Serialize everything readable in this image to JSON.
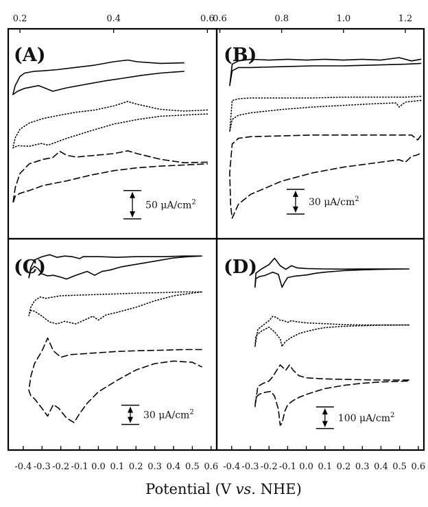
{
  "figure": {
    "xlabel_prefix": "Potential (V ",
    "xlabel_italic": "vs.",
    "xlabel_suffix": " NHE)"
  },
  "chart_data": [
    {
      "type": "line",
      "panel": "A",
      "label": "(A)",
      "x_axis_position": "top",
      "xlim": [
        0.175,
        0.62
      ],
      "xticks": [
        0.2,
        0.4,
        0.6
      ],
      "xtick_labels": [
        "0.2",
        "0.4",
        "0.6"
      ],
      "y_units": "μA/cm²",
      "ylim": [
        -330,
        40
      ],
      "scale_bar": {
        "value": 50,
        "label": "50 μA/cm",
        "sup": "2",
        "x": 0.44,
        "y_center": -270
      },
      "curve_styles": [
        "solid",
        "dotted",
        "dashed"
      ],
      "series": [
        {
          "style": "solid",
          "x": [
            0.55,
            0.5,
            0.45,
            0.43,
            0.4,
            0.36,
            0.32,
            0.28,
            0.25,
            0.23,
            0.21,
            0.2,
            0.19,
            0.185,
            0.195,
            0.21,
            0.24,
            0.27,
            0.3,
            0.34,
            0.38,
            0.42,
            0.46,
            0.5,
            0.55
          ],
          "y": [
            -20,
            -21,
            -18,
            -15,
            -18,
            -24,
            -28,
            -32,
            -34,
            -35,
            -38,
            -44,
            -60,
            -76,
            -70,
            -65,
            -60,
            -70,
            -64,
            -58,
            -52,
            -47,
            -42,
            -38,
            -35
          ]
        },
        {
          "style": "dotted",
          "x": [
            0.6,
            0.55,
            0.5,
            0.45,
            0.43,
            0.4,
            0.36,
            0.32,
            0.28,
            0.25,
            0.22,
            0.2,
            0.19,
            0.185,
            0.195,
            0.22,
            0.245,
            0.26,
            0.3,
            0.35,
            0.4,
            0.45,
            0.5,
            0.55,
            0.6
          ],
          "y": [
            -103,
            -105,
            -102,
            -93,
            -88,
            -96,
            -103,
            -107,
            -113,
            -118,
            -126,
            -137,
            -152,
            -170,
            -166,
            -167,
            -162,
            -165,
            -153,
            -140,
            -128,
            -120,
            -114,
            -112,
            -110
          ]
        },
        {
          "style": "dashed",
          "x": [
            0.6,
            0.55,
            0.5,
            0.45,
            0.43,
            0.4,
            0.36,
            0.32,
            0.3,
            0.285,
            0.27,
            0.25,
            0.22,
            0.2,
            0.19,
            0.185,
            0.19,
            0.2,
            0.22,
            0.25,
            0.3,
            0.35,
            0.4,
            0.45,
            0.5,
            0.55,
            0.6
          ],
          "y": [
            -195,
            -196,
            -190,
            -180,
            -175,
            -180,
            -183,
            -186,
            -183,
            -176,
            -187,
            -190,
            -198,
            -215,
            -240,
            -268,
            -255,
            -250,
            -245,
            -236,
            -228,
            -218,
            -210,
            -205,
            -202,
            -200,
            -198
          ]
        }
      ]
    },
    {
      "type": "line",
      "panel": "B",
      "label": "(B)",
      "x_axis_position": "top",
      "xlim": [
        0.59,
        1.26
      ],
      "xticks": [
        0.6,
        0.8,
        1.0,
        1.2
      ],
      "xtick_labels": [
        "0.6",
        "0.8",
        "1.0",
        "1.2"
      ],
      "y_units": "μA/cm²",
      "ylim": [
        -230,
        25
      ],
      "scale_bar": {
        "value": 30,
        "label": "30 μA/cm",
        "sup": "2",
        "x": 0.845,
        "y_center": -185
      },
      "curve_styles": [
        "solid",
        "dotted",
        "dashed"
      ],
      "series": [
        {
          "style": "solid",
          "x": [
            1.25,
            1.22,
            1.18,
            1.12,
            1.06,
            1.0,
            0.94,
            0.88,
            0.82,
            0.76,
            0.7,
            0.66,
            0.64,
            0.632,
            0.64,
            0.66,
            0.7,
            0.8,
            0.9,
            1.0,
            1.1,
            1.2,
            1.25
          ],
          "y": [
            -12,
            -14,
            -10,
            -13,
            -12,
            -13,
            -12,
            -13,
            -12,
            -13,
            -12,
            -14,
            -18,
            -44,
            -26,
            -22,
            -22,
            -21,
            -20,
            -20,
            -19,
            -18,
            -17
          ]
        },
        {
          "style": "dotted",
          "x": [
            1.25,
            1.2,
            1.1,
            1.0,
            0.9,
            0.8,
            0.7,
            0.66,
            0.64,
            0.632,
            0.64,
            0.66,
            0.7,
            0.8,
            0.9,
            1.0,
            1.1,
            1.17,
            1.18,
            1.2,
            1.25
          ],
          "y": [
            -57,
            -58,
            -58,
            -58,
            -59,
            -59,
            -59,
            -60,
            -62,
            -100,
            -85,
            -80,
            -77,
            -73,
            -70,
            -68,
            -66,
            -65,
            -70,
            -64,
            -62
          ]
        },
        {
          "style": "dashed",
          "x": [
            1.25,
            1.24,
            1.22,
            1.18,
            1.1,
            1.0,
            0.9,
            0.8,
            0.7,
            0.66,
            0.64,
            0.632,
            0.635,
            0.64,
            0.66,
            0.7,
            0.8,
            0.9,
            1.0,
            1.1,
            1.18,
            1.2,
            1.22,
            1.24,
            1.25
          ],
          "y": [
            -105,
            -110,
            -104,
            -104,
            -104,
            -104,
            -104,
            -105,
            -106,
            -108,
            -115,
            -150,
            -190,
            -205,
            -188,
            -176,
            -160,
            -150,
            -143,
            -138,
            -134,
            -137,
            -130,
            -128,
            -126
          ]
        }
      ]
    },
    {
      "type": "line",
      "panel": "C",
      "label": "(C)",
      "x_axis_position": "bottom",
      "xlim": [
        -0.48,
        0.63
      ],
      "xticks": [
        -0.4,
        -0.3,
        -0.2,
        -0.1,
        0.0,
        0.1,
        0.2,
        0.3,
        0.4,
        0.5,
        0.6
      ],
      "xtick_labels": [
        "-0.4",
        "-0.3",
        "-0.2",
        "-0.1",
        "0.0",
        "0.1",
        "0.2",
        "0.3",
        "0.4",
        "0.5",
        "0.6"
      ],
      "y_units": "μA/cm²",
      "ylim": [
        -305,
        25
      ],
      "scale_bar": {
        "value": 30,
        "label": "30 μA/cm",
        "sup": "2",
        "x": 0.17,
        "y_center": -250
      },
      "curve_styles": [
        "solid",
        "dotted",
        "dashed"
      ],
      "series": [
        {
          "style": "solid",
          "x": [
            0.55,
            0.45,
            0.35,
            0.2,
            0.1,
            0.0,
            -0.08,
            -0.1,
            -0.14,
            -0.18,
            -0.22,
            -0.26,
            -0.3,
            -0.34,
            -0.36,
            -0.37,
            -0.36,
            -0.34,
            -0.32,
            -0.3,
            -0.27,
            -0.24,
            -0.2,
            -0.17,
            -0.12,
            -0.06,
            -0.02,
            0.02,
            0.06,
            0.12,
            0.2,
            0.3,
            0.4,
            0.48,
            0.55
          ],
          "y": [
            -2,
            -2,
            -3,
            -3,
            -4,
            -3,
            -3,
            -6,
            -3,
            -2,
            -4,
            0,
            -3,
            -8,
            -20,
            -36,
            -24,
            -18,
            -22,
            -30,
            -33,
            -32,
            -35,
            -38,
            -32,
            -26,
            -32,
            -26,
            -24,
            -19,
            -15,
            -10,
            -5,
            -3,
            -2
          ]
        },
        {
          "style": "dotted",
          "x": [
            0.55,
            0.45,
            0.35,
            0.2,
            0.1,
            0.0,
            -0.1,
            -0.2,
            -0.28,
            -0.31,
            -0.34,
            -0.36,
            -0.37,
            -0.36,
            -0.34,
            -0.3,
            -0.26,
            -0.22,
            -0.18,
            -0.12,
            -0.06,
            -0.03,
            0.0,
            0.04,
            0.1,
            0.2,
            0.3,
            0.4,
            0.5,
            0.55
          ],
          "y": [
            -58,
            -58,
            -59,
            -60,
            -61,
            -62,
            -63,
            -64,
            -68,
            -66,
            -72,
            -82,
            -95,
            -87,
            -88,
            -96,
            -105,
            -108,
            -104,
            -108,
            -100,
            -96,
            -102,
            -94,
            -90,
            -82,
            -72,
            -64,
            -60,
            -58
          ]
        },
        {
          "style": "dashed",
          "x": [
            0.55,
            0.45,
            0.35,
            0.2,
            0.1,
            0.0,
            -0.1,
            -0.15,
            -0.2,
            -0.24,
            -0.27,
            -0.3,
            -0.34,
            -0.36,
            -0.37,
            -0.36,
            -0.34,
            -0.3,
            -0.27,
            -0.24,
            -0.21,
            -0.17,
            -0.13,
            -0.1,
            -0.06,
            0.0,
            0.1,
            0.2,
            0.3,
            0.4,
            0.5,
            0.55
          ],
          "y": [
            -148,
            -148,
            -149,
            -150,
            -151,
            -153,
            -155,
            -156,
            -160,
            -150,
            -130,
            -150,
            -170,
            -190,
            -212,
            -220,
            -225,
            -240,
            -252,
            -234,
            -240,
            -255,
            -262,
            -248,
            -232,
            -214,
            -196,
            -180,
            -170,
            -166,
            -168,
            -175
          ]
        }
      ]
    },
    {
      "type": "line",
      "panel": "D",
      "label": "(D)",
      "x_axis_position": "bottom",
      "xlim": [
        -0.48,
        0.63
      ],
      "xticks": [
        -0.4,
        -0.3,
        -0.2,
        -0.1,
        0.0,
        0.1,
        0.2,
        0.3,
        0.4,
        0.5,
        0.6
      ],
      "xtick_labels": [
        "-0.4",
        "-0.3",
        "-0.2",
        "-0.1",
        "0.0",
        "0.1",
        "0.2",
        "0.3",
        "0.4",
        "0.5",
        "0.6"
      ],
      "y_units": "μA/cm²",
      "ylim": [
        -900,
        80
      ],
      "scale_bar": {
        "value": 100,
        "label": "100 μA/cm",
        "sup": "2",
        "x": 0.1,
        "y_center": -750
      },
      "curve_styles": [
        "solid",
        "dotted",
        "dashed"
      ],
      "series": [
        {
          "style": "solid",
          "x": [
            0.55,
            0.4,
            0.3,
            0.2,
            0.1,
            0.0,
            -0.05,
            -0.08,
            -0.11,
            -0.14,
            -0.17,
            -0.2,
            -0.24,
            -0.27,
            -0.275,
            -0.27,
            -0.25,
            -0.22,
            -0.18,
            -0.15,
            -0.13,
            -0.115,
            -0.1,
            -0.06,
            0.0,
            0.05,
            0.1,
            0.2,
            0.3,
            0.4,
            0.55
          ],
          "y": [
            -60,
            -60,
            -60,
            -61,
            -60,
            -58,
            -55,
            -45,
            -62,
            -45,
            -10,
            -40,
            -60,
            -80,
            -145,
            -105,
            -95,
            -90,
            -75,
            -85,
            -145,
            -120,
            -100,
            -93,
            -88,
            -80,
            -75,
            -68,
            -64,
            -62,
            -60
          ]
        },
        {
          "style": "dotted",
          "x": [
            0.55,
            0.4,
            0.3,
            0.2,
            0.1,
            0.0,
            -0.05,
            -0.08,
            -0.1,
            -0.12,
            -0.14,
            -0.16,
            -0.18,
            -0.2,
            -0.23,
            -0.26,
            -0.275,
            -0.27,
            -0.24,
            -0.2,
            -0.17,
            -0.14,
            -0.13,
            -0.125,
            -0.11,
            -0.08,
            -0.04,
            0.0,
            0.05,
            0.1,
            0.2,
            0.3,
            0.4,
            0.55
          ],
          "y": [
            -320,
            -320,
            -320,
            -318,
            -314,
            -310,
            -305,
            -300,
            -308,
            -300,
            -298,
            -285,
            -280,
            -300,
            -320,
            -340,
            -420,
            -370,
            -348,
            -330,
            -352,
            -385,
            -420,
            -412,
            -395,
            -378,
            -360,
            -350,
            -340,
            -332,
            -326,
            -323,
            -321,
            -320
          ]
        },
        {
          "style": "dashed",
          "x": [
            0.55,
            0.4,
            0.3,
            0.2,
            0.1,
            0.0,
            -0.04,
            -0.07,
            -0.09,
            -0.11,
            -0.14,
            -0.16,
            -0.18,
            -0.2,
            -0.23,
            -0.26,
            -0.275,
            -0.27,
            -0.25,
            -0.22,
            -0.19,
            -0.17,
            -0.15,
            -0.14,
            -0.13,
            -0.115,
            -0.1,
            -0.07,
            -0.04,
            0.0,
            0.05,
            0.1,
            0.2,
            0.3,
            0.4,
            0.55
          ],
          "y": [
            -575,
            -575,
            -574,
            -572,
            -570,
            -565,
            -555,
            -530,
            -505,
            -530,
            -505,
            -532,
            -560,
            -580,
            -590,
            -605,
            -700,
            -655,
            -640,
            -632,
            -628,
            -650,
            -710,
            -785,
            -775,
            -720,
            -690,
            -670,
            -656,
            -642,
            -628,
            -615,
            -600,
            -590,
            -584,
            -580
          ]
        }
      ]
    }
  ]
}
